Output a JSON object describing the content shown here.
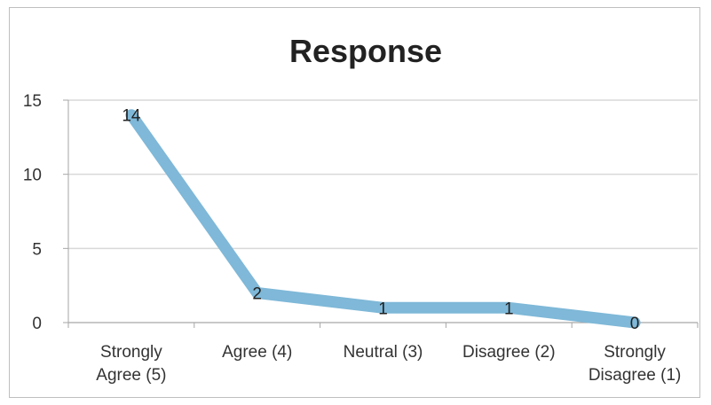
{
  "chart_data": {
    "type": "line",
    "title": "Response",
    "xlabel": "",
    "ylabel": "",
    "categories": [
      "Strongly Agree (5)",
      "Agree (4)",
      "Neutral (3)",
      "Disagree (2)",
      "Strongly Disagree (1)"
    ],
    "category_lines": [
      [
        "Strongly",
        "Agree (5)"
      ],
      [
        "Agree (4)"
      ],
      [
        "Neutral (3)"
      ],
      [
        "Disagree (2)"
      ],
      [
        "Strongly",
        "Disagree (1)"
      ]
    ],
    "series": [
      {
        "values": [
          14,
          2,
          1,
          1,
          0
        ]
      }
    ],
    "data_labels": [
      "14",
      "2",
      "1",
      "1",
      "0"
    ],
    "ylim": [
      0,
      15
    ],
    "yticks": [
      0,
      5,
      10,
      15
    ],
    "ytick_labels": [
      "0",
      "5",
      "10",
      "15"
    ],
    "grid": true,
    "legend": "none",
    "colors": {
      "line": "#7fb8d8",
      "grid": "#d9d9d9",
      "axis": "#a6a6a6"
    }
  }
}
